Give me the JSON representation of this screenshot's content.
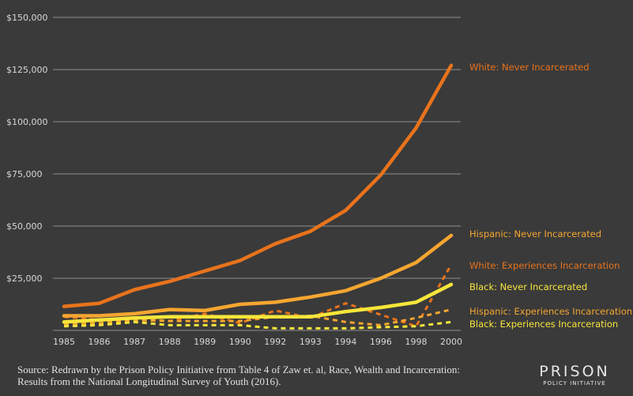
{
  "chart_data": {
    "type": "line",
    "x": [
      "1985",
      "1986",
      "1987",
      "1988",
      "1989",
      "1990",
      "1992",
      "1993",
      "1994",
      "1996",
      "1998",
      "2000"
    ],
    "ylim": [
      0,
      150000
    ],
    "y_ticks": [
      25000,
      50000,
      75000,
      100000,
      125000,
      150000
    ],
    "y_tick_labels": [
      "$25,000",
      "$50,000",
      "$75,000",
      "$100,000",
      "$125,000",
      "$150,000"
    ],
    "grid": true,
    "legend": "direct labels at right end of each line",
    "series": [
      {
        "name": "White: Never Incarcerated",
        "color": "#e8731c",
        "dash": false,
        "values": [
          11500,
          13000,
          19500,
          23500,
          28500,
          33500,
          41500,
          47500,
          57500,
          74500,
          97000,
          127000
        ]
      },
      {
        "name": "Hispanic: Never Incarcerated",
        "color": "#f5a630",
        "dash": false,
        "values": [
          7000,
          7000,
          8000,
          10000,
          9500,
          12500,
          13500,
          16000,
          19000,
          25000,
          32500,
          45500
        ]
      },
      {
        "name": "White: Experiences Incarceration",
        "color": "#e8731c",
        "dash": true,
        "values": [
          6500,
          5000,
          5500,
          4500,
          8000,
          3500,
          9500,
          6000,
          13000,
          7500,
          2000,
          31500
        ]
      },
      {
        "name": "Black: Never Incarcerated",
        "color": "#f6e63a",
        "dash": false,
        "values": [
          4000,
          5000,
          6000,
          6500,
          6500,
          6500,
          6500,
          6500,
          9000,
          11000,
          13500,
          22000
        ]
      },
      {
        "name": "Hispanic: Experiences Incarceration",
        "color": "#f5a630",
        "dash": true,
        "values": [
          3000,
          3500,
          5000,
          4500,
          4500,
          4500,
          6500,
          7000,
          4000,
          2500,
          6000,
          10000
        ]
      },
      {
        "name": "Black: Experiences Incarceration",
        "color": "#f6e63a",
        "dash": true,
        "values": [
          2000,
          2500,
          4000,
          2500,
          2500,
          2500,
          1000,
          1000,
          1000,
          1500,
          2000,
          4000
        ]
      }
    ]
  },
  "footer": {
    "source": "Source: Redrawn by the Prison Policy Initiative from Table 4 of Zaw et. al, Race, Wealth and Incarceration: Results from the National Longitudinal Survey of Youth (2016).",
    "logo_main": "PRISON",
    "logo_sub": "POLICY INITIATIVE"
  }
}
